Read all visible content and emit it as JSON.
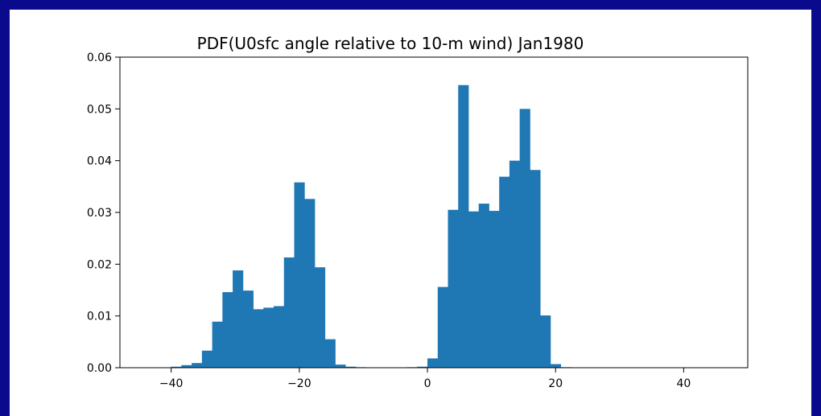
{
  "chart_data": {
    "type": "bar",
    "title": "PDF(U0sfc angle relative to 10-m wind) Jan1980",
    "xlabel": "",
    "ylabel": "",
    "xlim": [
      -48,
      50
    ],
    "ylim": [
      0,
      0.06
    ],
    "xticks": [
      -40,
      -20,
      0,
      20,
      40
    ],
    "xtick_labels": [
      "−40",
      "−20",
      "0",
      "20",
      "40"
    ],
    "yticks": [
      0.0,
      0.01,
      0.02,
      0.03,
      0.04,
      0.05,
      0.06
    ],
    "ytick_labels": [
      "0.00",
      "0.01",
      "0.02",
      "0.03",
      "0.04",
      "0.05",
      "0.06"
    ],
    "grid": false,
    "bar_color": "#1f77b4",
    "bin_width": 1.6,
    "bin_edges_start": -40,
    "values": [
      0.0002,
      0.0005,
      0.0009,
      0.0033,
      0.0089,
      0.0146,
      0.0188,
      0.0149,
      0.0113,
      0.0116,
      0.0119,
      0.0213,
      0.0358,
      0.0326,
      0.0194,
      0.0055,
      0.0006,
      0.0002,
      0.0001,
      0.0,
      0.0,
      0.0,
      0.0,
      0.0001,
      0.0002,
      0.0018,
      0.0156,
      0.0305,
      0.0546,
      0.0302,
      0.0317,
      0.0303,
      0.0369,
      0.04,
      0.05,
      0.0382,
      0.0101,
      0.0007,
      0.0001
    ]
  }
}
